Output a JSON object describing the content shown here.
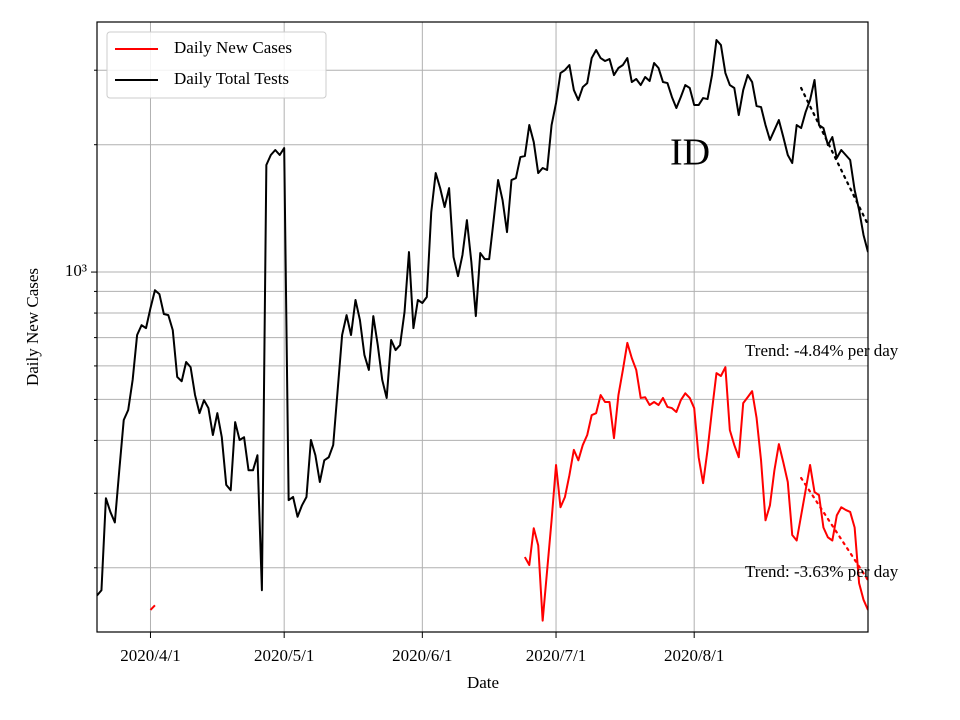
{
  "chart_data": {
    "type": "line",
    "title": "ID",
    "xlabel": "Date",
    "ylabel": "Daily New Cases",
    "x": [
      "2020/3/20",
      "2020/3/21",
      "2020/3/22",
      "2020/3/23",
      "2020/3/24",
      "2020/3/25",
      "2020/3/26",
      "2020/3/27",
      "2020/3/28",
      "2020/3/29",
      "2020/3/30",
      "2020/3/31",
      "2020/4/1",
      "2020/4/2",
      "2020/4/3",
      "2020/4/4",
      "2020/4/5",
      "2020/4/6",
      "2020/4/7",
      "2020/4/8",
      "2020/4/9",
      "2020/4/10",
      "2020/4/11",
      "2020/4/12",
      "2020/4/13",
      "2020/4/14",
      "2020/4/15",
      "2020/4/16",
      "2020/4/17",
      "2020/4/18",
      "2020/4/19",
      "2020/4/20",
      "2020/4/21",
      "2020/4/22",
      "2020/4/23",
      "2020/4/24",
      "2020/4/25",
      "2020/4/26",
      "2020/4/27",
      "2020/4/28",
      "2020/4/29",
      "2020/4/30",
      "2020/5/1",
      "2020/5/2",
      "2020/5/3",
      "2020/5/4",
      "2020/5/5",
      "2020/5/6",
      "2020/5/7",
      "2020/5/8",
      "2020/5/9",
      "2020/5/10",
      "2020/5/11",
      "2020/5/12",
      "2020/5/13",
      "2020/5/14",
      "2020/5/15",
      "2020/5/16",
      "2020/5/17",
      "2020/5/18",
      "2020/5/19",
      "2020/5/20",
      "2020/5/21",
      "2020/5/22",
      "2020/5/23",
      "2020/5/24",
      "2020/5/25",
      "2020/5/26",
      "2020/5/27",
      "2020/5/28",
      "2020/5/29",
      "2020/5/30",
      "2020/5/31",
      "2020/6/1",
      "2020/6/2",
      "2020/6/3",
      "2020/6/4",
      "2020/6/5",
      "2020/6/6",
      "2020/6/7",
      "2020/6/8",
      "2020/6/9",
      "2020/6/10",
      "2020/6/11",
      "2020/6/12",
      "2020/6/13",
      "2020/6/14",
      "2020/6/15",
      "2020/6/16",
      "2020/6/17",
      "2020/6/18",
      "2020/6/19",
      "2020/6/20",
      "2020/6/21",
      "2020/6/22",
      "2020/6/23",
      "2020/6/24",
      "2020/6/25",
      "2020/6/26",
      "2020/6/27",
      "2020/6/28",
      "2020/6/29",
      "2020/6/30",
      "2020/7/1",
      "2020/7/2",
      "2020/7/3",
      "2020/7/4",
      "2020/7/5",
      "2020/7/6",
      "2020/7/7",
      "2020/7/8",
      "2020/7/9",
      "2020/7/10",
      "2020/7/11",
      "2020/7/12",
      "2020/7/13",
      "2020/7/14",
      "2020/7/15",
      "2020/7/16",
      "2020/7/17",
      "2020/7/18",
      "2020/7/19",
      "2020/7/20",
      "2020/7/21",
      "2020/7/22",
      "2020/7/23",
      "2020/7/24",
      "2020/7/25",
      "2020/7/26",
      "2020/7/27",
      "2020/7/28",
      "2020/7/29",
      "2020/7/30",
      "2020/7/31",
      "2020/8/1",
      "2020/8/2",
      "2020/8/3",
      "2020/8/4",
      "2020/8/5",
      "2020/8/6",
      "2020/8/7",
      "2020/8/8",
      "2020/8/9",
      "2020/8/10",
      "2020/8/11",
      "2020/8/12",
      "2020/8/13",
      "2020/8/14",
      "2020/8/15",
      "2020/8/16",
      "2020/8/17",
      "2020/8/18",
      "2020/8/19",
      "2020/8/20",
      "2020/8/21",
      "2020/8/22",
      "2020/8/23",
      "2020/8/24",
      "2020/8/25",
      "2020/8/26",
      "2020/8/27",
      "2020/8/28",
      "2020/8/29",
      "2020/8/30",
      "2020/8/31",
      "2020/9/1",
      "2020/9/2",
      "2020/9/3",
      "2020/9/4",
      "2020/9/5",
      "2020/9/6",
      "2020/9/7",
      "2020/9/8",
      "2020/9/9"
    ],
    "xlim": [
      "2020/3/20",
      "2020/9/9"
    ],
    "xticks": [
      "2020/4/1",
      "2020/5/1",
      "2020/6/1",
      "2020/7/1",
      "2020/8/1"
    ],
    "yscale": "log",
    "ylim": [
      141,
      3900
    ],
    "yticks": [
      {
        "value": 1000,
        "label": "10³"
      }
    ],
    "yminorticks": [
      200,
      300,
      400,
      500,
      600,
      700,
      800,
      900,
      2000,
      3000
    ],
    "grid": true,
    "legend": "upper left",
    "series": [
      {
        "name": "Daily New Cases",
        "color": "#ff0000",
        "values": [
          null,
          null,
          null,
          null,
          null,
          null,
          null,
          null,
          null,
          null,
          null,
          null,
          159,
          163,
          null,
          null,
          null,
          null,
          null,
          null,
          null,
          null,
          null,
          null,
          null,
          null,
          null,
          null,
          null,
          null,
          null,
          null,
          null,
          null,
          null,
          null,
          null,
          null,
          null,
          null,
          null,
          null,
          null,
          null,
          null,
          null,
          null,
          null,
          null,
          null,
          null,
          null,
          null,
          null,
          null,
          null,
          null,
          null,
          null,
          null,
          null,
          null,
          null,
          null,
          null,
          null,
          null,
          null,
          null,
          null,
          null,
          null,
          null,
          null,
          null,
          null,
          null,
          null,
          null,
          null,
          null,
          null,
          null,
          null,
          null,
          null,
          null,
          null,
          null,
          null,
          null,
          null,
          null,
          null,
          null,
          null,
          212,
          203,
          248,
          226,
          150,
          197,
          259,
          350,
          278,
          294,
          331,
          380,
          359,
          390,
          412,
          459,
          464,
          512,
          493,
          493,
          405,
          512,
          587,
          680,
          626,
          587,
          504,
          506,
          485,
          493,
          485,
          504,
          480,
          477,
          467,
          498,
          517,
          504,
          477,
          365,
          317,
          380,
          472,
          577,
          568,
          596,
          423,
          390,
          365,
          490,
          506,
          523,
          452,
          359,
          259,
          281,
          340,
          392,
          355,
          319,
          239,
          232,
          266,
          305,
          350,
          302,
          297,
          249,
          236,
          232,
          266,
          278,
          274,
          271,
          249,
          184,
          168,
          159
        ]
      },
      {
        "name": "Daily Total Tests",
        "color": "#000000",
        "values": [
          172,
          177,
          292,
          271,
          256,
          340,
          447,
          472,
          556,
          710,
          749,
          737,
          822,
          906,
          887,
          796,
          791,
          729,
          565,
          552,
          613,
          596,
          512,
          464,
          498,
          477,
          412,
          464,
          407,
          314,
          305,
          442,
          401,
          407,
          340,
          340,
          369,
          177,
          1791,
          1891,
          1943,
          1891,
          1964,
          289,
          294,
          264,
          281,
          294,
          401,
          369,
          319,
          359,
          365,
          390,
          526,
          710,
          791,
          710,
          859,
          770,
          637,
          587,
          787,
          672,
          556,
          504,
          691,
          654,
          672,
          804,
          1115,
          737,
          859,
          845,
          873,
          1386,
          1714,
          1579,
          1425,
          1579,
          1085,
          978,
          1097,
          1327,
          1056,
          787,
          1109,
          1073,
          1073,
          1327,
          1650,
          1480,
          1243,
          1650,
          1668,
          1870,
          1880,
          2226,
          2029,
          1714,
          1762,
          1743,
          2226,
          2509,
          2954,
          3003,
          3086,
          2693,
          2550,
          2737,
          2797,
          3205,
          3348,
          3205,
          3154,
          3188,
          2922,
          3036,
          3086,
          3205,
          2813,
          2860,
          2767,
          2891,
          2828,
          3120,
          3036,
          2813,
          2797,
          2593,
          2442,
          2593,
          2767,
          2723,
          2482,
          2482,
          2578,
          2564,
          2922,
          3536,
          3440,
          2954,
          2767,
          2723,
          2350,
          2693,
          2922,
          2813,
          2468,
          2455,
          2226,
          2052,
          2166,
          2287,
          2085,
          1891,
          1810,
          2226,
          2190,
          2389,
          2550,
          2844,
          2226,
          2190,
          1996,
          2085,
          1860,
          1943,
          1891,
          1840,
          1563,
          1402,
          1223,
          1115
        ]
      }
    ],
    "trends": [
      {
        "label": "Trend: -4.84% per day",
        "color": "#000000",
        "x": [
          "2020/8/25",
          "2020/9/9"
        ],
        "values": [
          2723,
          1294
        ]
      },
      {
        "label": "Trend: -3.63% per day",
        "color": "#ff0000",
        "x": [
          "2020/8/25",
          "2020/9/9"
        ],
        "values": [
          326,
          187
        ]
      }
    ]
  }
}
